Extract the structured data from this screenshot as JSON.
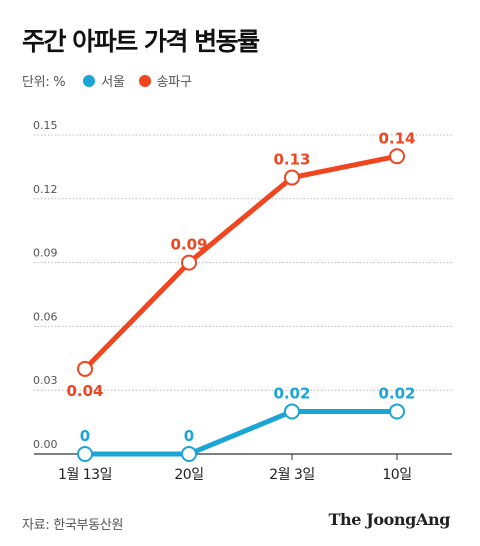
{
  "title": "주간 아파트 가격 변동률",
  "legend": {
    "unit": "단위: %",
    "seoul_label": "서울",
    "songpa_label": "송파구"
  },
  "colors": {
    "seoul": "#1aa5d6",
    "songpa": "#f0451e",
    "grid": "#bbbbbb",
    "axis_text": "#555555"
  },
  "chart_data": {
    "type": "line",
    "categories": [
      "1월 13일",
      "20일",
      "2월 3일",
      "10일"
    ],
    "ylim": [
      0,
      0.15
    ],
    "yticks": [
      "0.00",
      "0.03",
      "0.06",
      "0.09",
      "0.12",
      "0.15"
    ],
    "series": [
      {
        "name": "서울",
        "color": "#1aa5d6",
        "values": [
          0,
          0,
          0.02,
          0.02
        ],
        "labels": [
          "0",
          "0",
          "0.02",
          "0.02"
        ]
      },
      {
        "name": "송파구",
        "color": "#f0451e",
        "values": [
          0.04,
          0.09,
          0.13,
          0.14
        ],
        "labels": [
          "0.04",
          "0.09",
          "0.13",
          "0.14"
        ]
      }
    ]
  },
  "footer": {
    "source": "자료: 한국부동산원",
    "brand": "The JoongAng"
  }
}
